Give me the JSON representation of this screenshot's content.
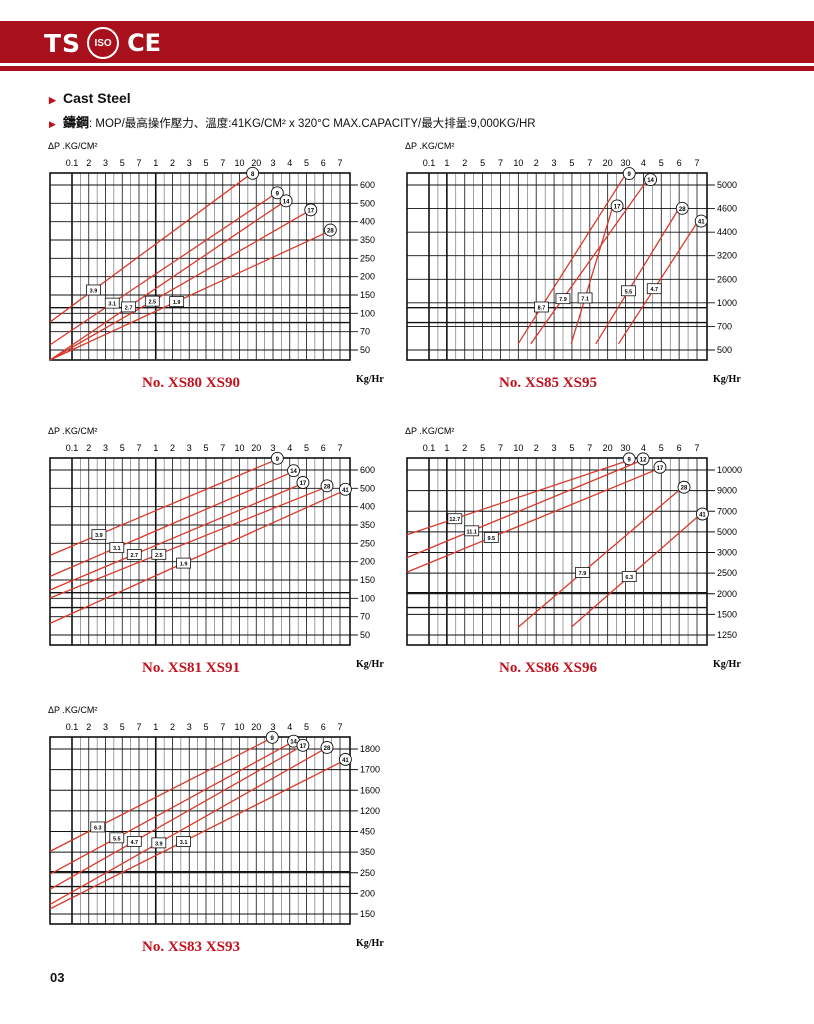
{
  "header": {
    "brand": "TS",
    "iso": "ISO",
    "ce": "CE"
  },
  "section": {
    "title": "Cast Steel",
    "spec_bold": "鑄鋼",
    "spec_text": ": MOP/最高操作壓力、溫度:41KG/CM² x 320°C    MAX.CAPACITY/最大排量:9,000KG/HR"
  },
  "page_number": "03",
  "colors": {
    "brand": "#a8111c",
    "curve": "#d93a2c",
    "grid": "#111111"
  },
  "chart_data": [
    {
      "type": "line",
      "title": "No. XS80 XS90",
      "ylabel": "ΔP .KG/CM²",
      "xlabel": "Kg/Hr",
      "x_ticks": [
        "0.1",
        "2",
        "3",
        "5",
        "7",
        "1",
        "2",
        "3",
        "5",
        "7",
        "10",
        "20",
        "3",
        "4",
        "5",
        "6",
        "7"
      ],
      "y_ticks": [
        600,
        500,
        400,
        350,
        250,
        200,
        150,
        100,
        70,
        50
      ],
      "series": [
        {
          "name": "8",
          "points": [
            [
              0.1,
              70
            ],
            [
              6,
              600
            ]
          ]
        },
        {
          "name": "9",
          "points": [
            [
              0.1,
              50
            ],
            [
              10,
              450
            ]
          ]
        },
        {
          "name": "14",
          "points": [
            [
              0.1,
              30
            ],
            [
              12,
              400
            ]
          ]
        },
        {
          "name": "17",
          "points": [
            [
              0.1,
              25
            ],
            [
              20,
              350
            ]
          ]
        },
        {
          "name": "28",
          "points": [
            [
              0.1,
              10
            ],
            [
              30,
              260
            ]
          ]
        }
      ],
      "markers": [
        "3.9",
        "3.1",
        "2.7",
        "2.5",
        "1.9"
      ]
    },
    {
      "type": "line",
      "title": "No. XS85 XS95",
      "ylabel": "ΔP .KG/CM²",
      "xlabel": "Kg/Hr",
      "x_ticks": [
        "0.1",
        "1",
        "2",
        "5",
        "7",
        "10",
        "2",
        "3",
        "5",
        "7",
        "20",
        "30",
        "4",
        "5",
        "6",
        "7"
      ],
      "y_ticks": [
        5000,
        4600,
        4400,
        3200,
        2600,
        1000,
        700,
        500
      ],
      "series": [
        {
          "name": "9",
          "points": [
            [
              1,
              500
            ],
            [
              9,
              5000
            ]
          ]
        },
        {
          "name": "14",
          "points": [
            [
              1.3,
              500
            ],
            [
              14,
              4600
            ]
          ]
        },
        {
          "name": "17",
          "points": [
            [
              3,
              500
            ],
            [
              7,
              3200
            ]
          ]
        },
        {
          "name": "28",
          "points": [
            [
              5,
              500
            ],
            [
              27,
              3100
            ]
          ]
        },
        {
          "name": "41",
          "points": [
            [
              8,
              500
            ],
            [
              40,
              2600
            ]
          ]
        }
      ],
      "markers": [
        "8.7",
        "7.9",
        "7.1",
        "5.5",
        "4.7"
      ]
    },
    {
      "type": "line",
      "title": "No. XS81 XS91",
      "ylabel": "ΔP .KG/CM²",
      "xlabel": "Kg/Hr",
      "x_ticks": [
        "0.1",
        "2",
        "3",
        "5",
        "7",
        "1",
        "2",
        "3",
        "5",
        "7",
        "10",
        "20",
        "3",
        "4",
        "5",
        "6",
        "7"
      ],
      "y_ticks": [
        600,
        500,
        400,
        350,
        250,
        200,
        150,
        100,
        70,
        50
      ],
      "series": [
        {
          "name": "9",
          "points": [
            [
              0.1,
              150
            ],
            [
              10,
              600
            ]
          ]
        },
        {
          "name": "14",
          "points": [
            [
              0.1,
              110
            ],
            [
              14,
              500
            ]
          ]
        },
        {
          "name": "17",
          "points": [
            [
              0.1,
              90
            ],
            [
              17,
              420
            ]
          ]
        },
        {
          "name": "28",
          "points": [
            [
              0.1,
              80
            ],
            [
              28,
              400
            ]
          ]
        },
        {
          "name": "41",
          "points": [
            [
              0.1,
              55
            ],
            [
              41,
              380
            ]
          ]
        }
      ],
      "markers": [
        "3.9",
        "3.1",
        "2.7",
        "2.5",
        "1.9"
      ]
    },
    {
      "type": "line",
      "title": "No. XS86 XS96",
      "ylabel": "ΔP .KG/CM²",
      "xlabel": "Kg/Hr",
      "x_ticks": [
        "0.1",
        "1",
        "2",
        "5",
        "7",
        "10",
        "2",
        "3",
        "5",
        "7",
        "20",
        "30",
        "4",
        "5",
        "6",
        "7"
      ],
      "y_ticks": [
        10000,
        9000,
        7000,
        5000,
        3000,
        2500,
        2000,
        1500,
        1250
      ],
      "series": [
        {
          "name": "9",
          "points": [
            [
              0.1,
              4000
            ],
            [
              9,
              10000
            ]
          ]
        },
        {
          "name": "12",
          "points": [
            [
              0.1,
              3000
            ],
            [
              12,
              10000
            ]
          ]
        },
        {
          "name": "17",
          "points": [
            [
              0.1,
              2500
            ],
            [
              17,
              9000
            ]
          ]
        },
        {
          "name": "28",
          "points": [
            [
              1,
              1250
            ],
            [
              28,
              7000
            ]
          ]
        },
        {
          "name": "41",
          "points": [
            [
              3,
              1250
            ],
            [
              41,
              5000
            ]
          ]
        }
      ],
      "markers": [
        "12.7",
        "11.1",
        "9.5",
        "7.9",
        "6.3"
      ]
    },
    {
      "type": "line",
      "title": "No. XS83 XS93",
      "ylabel": "ΔP .KG/CM²",
      "xlabel": "Kg/Hr",
      "x_ticks": [
        "0.1",
        "2",
        "3",
        "5",
        "7",
        "1",
        "2",
        "3",
        "5",
        "7",
        "10",
        "20",
        "3",
        "4",
        "5",
        "6",
        "7"
      ],
      "y_ticks": [
        1800,
        1700,
        1600,
        1200,
        450,
        350,
        250,
        200,
        150
      ],
      "series": [
        {
          "name": "9",
          "points": [
            [
              0.1,
              350
            ],
            [
              9,
              1800
            ]
          ]
        },
        {
          "name": "14",
          "points": [
            [
              0.1,
              250
            ],
            [
              14,
              1700
            ]
          ]
        },
        {
          "name": "17",
          "points": [
            [
              0.1,
              200
            ],
            [
              17,
              1600
            ]
          ]
        },
        {
          "name": "28",
          "points": [
            [
              0.1,
              160
            ],
            [
              28,
              1550
            ]
          ]
        },
        {
          "name": "41",
          "points": [
            [
              0.1,
              150
            ],
            [
              41,
              1300
            ]
          ]
        }
      ],
      "markers": [
        "6.3",
        "5.5",
        "4.7",
        "3.9",
        "3.1"
      ]
    }
  ]
}
